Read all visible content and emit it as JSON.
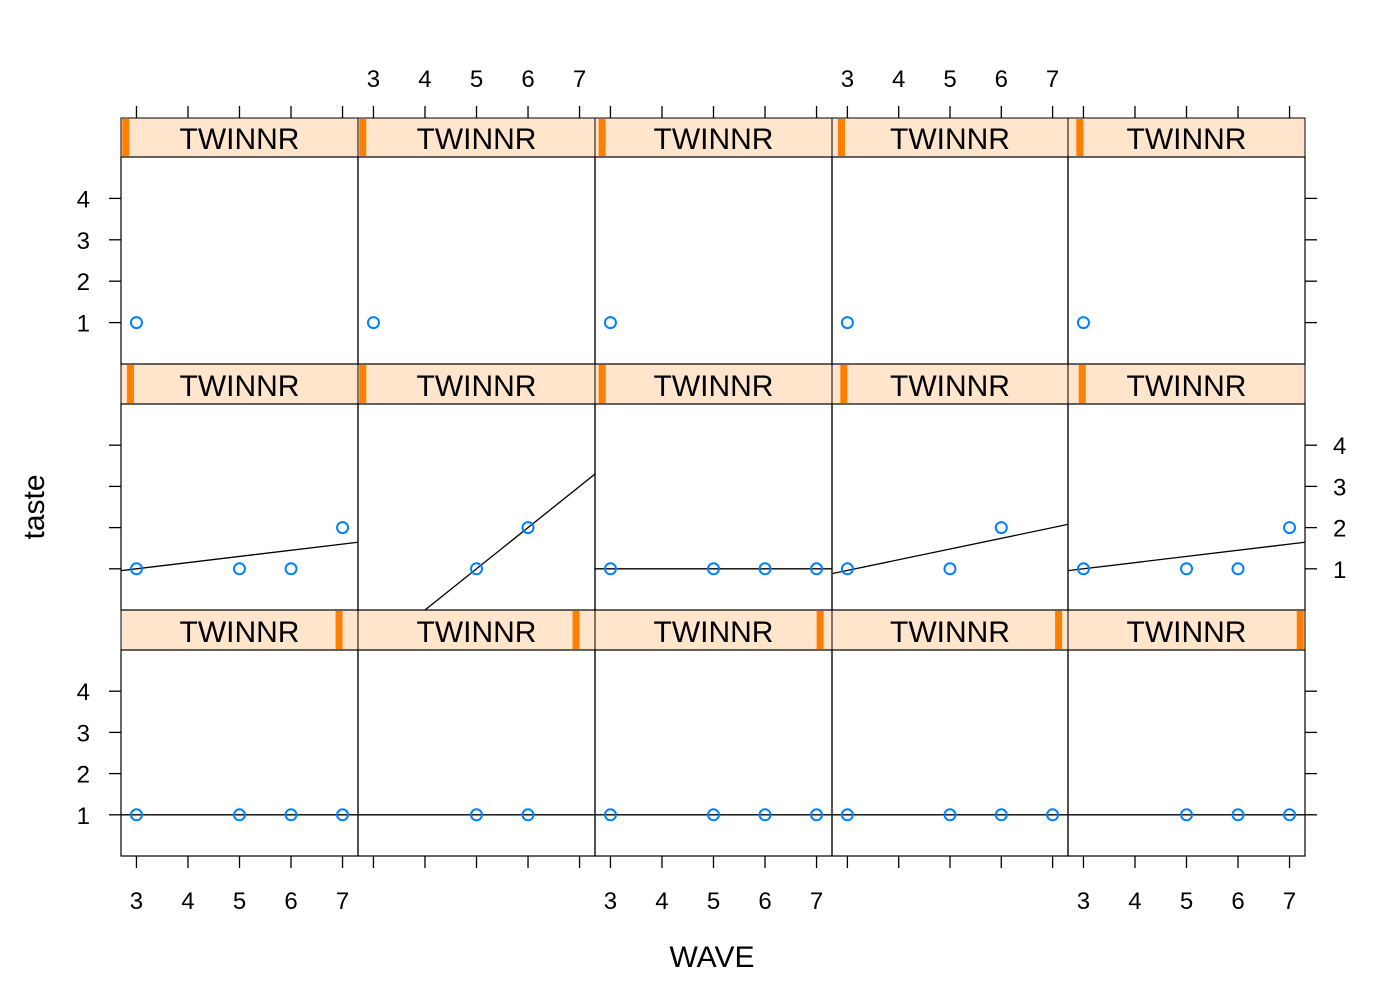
{
  "chart_data": {
    "type": "scatter",
    "title": "",
    "xlabel": "WAVE",
    "ylabel": "taste",
    "xlim": [
      2.7,
      7.3
    ],
    "ylim": [
      0,
      5
    ],
    "x_ticks": [
      3,
      4,
      5,
      6,
      7
    ],
    "y_ticks": [
      1,
      2,
      3,
      4
    ],
    "strip_label": "TWINNR",
    "colors": {
      "points": "#0080ff",
      "strip_bg": "#ffe5cc",
      "strip_level": "#ff7f00",
      "line": "#000000",
      "frame": "#000000"
    },
    "panels": [
      {
        "row": "bottom",
        "col": 1,
        "strip_level": 0.92,
        "x": [
          3,
          5,
          6,
          7
        ],
        "y": [
          1,
          1,
          1,
          1
        ],
        "fit": {
          "intercept": 1,
          "slope": 0
        }
      },
      {
        "row": "bottom",
        "col": 2,
        "strip_level": 0.92,
        "x": [
          5,
          6
        ],
        "y": [
          1,
          1
        ],
        "fit": {
          "intercept": 1,
          "slope": 0
        }
      },
      {
        "row": "bottom",
        "col": 3,
        "strip_level": 0.95,
        "x": [
          3,
          5,
          6,
          7
        ],
        "y": [
          1,
          1,
          1,
          1
        ],
        "fit": {
          "intercept": 1,
          "slope": 0
        }
      },
      {
        "row": "bottom",
        "col": 4,
        "strip_level": 0.96,
        "x": [
          3,
          5,
          6,
          7
        ],
        "y": [
          1,
          1,
          1,
          1
        ],
        "fit": {
          "intercept": 1,
          "slope": 0
        }
      },
      {
        "row": "bottom",
        "col": 5,
        "strip_level": 0.98,
        "x": [
          5,
          6,
          7
        ],
        "y": [
          1,
          1,
          1
        ],
        "fit": {
          "intercept": 1,
          "slope": 0
        }
      },
      {
        "row": "middle",
        "col": 1,
        "strip_level": 0.04,
        "x": [
          3,
          5,
          6,
          7
        ],
        "y": [
          1,
          1,
          1,
          2
        ],
        "fit": {
          "intercept": 0.55,
          "slope": 0.15
        }
      },
      {
        "row": "middle",
        "col": 2,
        "strip_level": 0.02,
        "x": [
          5,
          6
        ],
        "y": [
          1,
          2
        ],
        "fit": {
          "intercept": -4,
          "slope": 1
        }
      },
      {
        "row": "middle",
        "col": 3,
        "strip_level": 0.03,
        "x": [
          3,
          5,
          6,
          7
        ],
        "y": [
          1,
          1,
          1,
          1
        ],
        "fit": {
          "intercept": 1,
          "slope": 0
        }
      },
      {
        "row": "middle",
        "col": 4,
        "strip_level": 0.05,
        "x": [
          3,
          5,
          6
        ],
        "y": [
          1,
          1,
          2
        ],
        "fit": {
          "intercept": 0.18,
          "slope": 0.26
        }
      },
      {
        "row": "middle",
        "col": 5,
        "strip_level": 0.06,
        "x": [
          3,
          5,
          6,
          7
        ],
        "y": [
          1,
          1,
          1,
          2
        ],
        "fit": {
          "intercept": 0.55,
          "slope": 0.15
        }
      },
      {
        "row": "top",
        "col": 1,
        "strip_level": 0.02,
        "x": [
          3
        ],
        "y": [
          1
        ],
        "fit": null
      },
      {
        "row": "top",
        "col": 2,
        "strip_level": 0.02,
        "x": [
          3
        ],
        "y": [
          1
        ],
        "fit": null
      },
      {
        "row": "top",
        "col": 3,
        "strip_level": 0.03,
        "x": [
          3
        ],
        "y": [
          1
        ],
        "fit": null
      },
      {
        "row": "top",
        "col": 4,
        "strip_level": 0.04,
        "x": [
          3
        ],
        "y": [
          1
        ],
        "fit": null
      },
      {
        "row": "top",
        "col": 5,
        "strip_level": 0.05,
        "x": [
          3
        ],
        "y": [
          1
        ],
        "fit": null
      }
    ]
  }
}
